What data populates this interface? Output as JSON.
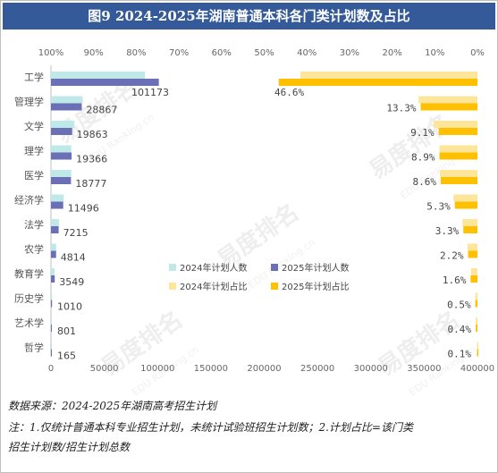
{
  "title": "图9  2024-2025年湖南普通本科各门类计划数及占比",
  "chart_data": [
    {
      "type": "bar",
      "orientation": "horizontal",
      "categories": [
        "工学",
        "管理学",
        "文学",
        "理学",
        "医学",
        "经济学",
        "法学",
        "农学",
        "教育学",
        "历史学",
        "艺术学",
        "哲学"
      ],
      "series": [
        {
          "name": "2024年计划人数",
          "color": "#bfe8e8",
          "values": [
            88000,
            29800,
            22000,
            19000,
            19000,
            12000,
            7500,
            4900,
            3300,
            1100,
            850,
            180
          ]
        },
        {
          "name": "2025年计划人数",
          "color": "#6b6fb6",
          "values": [
            101173,
            28867,
            19863,
            19366,
            18777,
            11496,
            7215,
            4814,
            3549,
            1010,
            801,
            165
          ]
        }
      ],
      "data_labels": [
        "101173",
        "28867",
        "19863",
        "19366",
        "18777",
        "11496",
        "7215",
        "4814",
        "3549",
        "1010",
        "801",
        "165"
      ],
      "xlim": [
        0,
        400000
      ],
      "xticks": [
        "0",
        "50000",
        "100000",
        "150000",
        "200000",
        "250000",
        "300000",
        "350000",
        "400000"
      ]
    },
    {
      "type": "bar",
      "orientation": "horizontal",
      "axis": "reversed",
      "categories": [
        "工学",
        "管理学",
        "文学",
        "理学",
        "医学",
        "经济学",
        "法学",
        "农学",
        "教育学",
        "历史学",
        "艺术学",
        "哲学"
      ],
      "series": [
        {
          "name": "2024年计划占比",
          "color": "#fde59a",
          "values": [
            41.5,
            13.8,
            10.3,
            8.9,
            8.8,
            5.6,
            3.5,
            2.3,
            1.5,
            0.5,
            0.4,
            0.1
          ]
        },
        {
          "name": "2025年计划占比",
          "color": "#ffc000",
          "values": [
            46.6,
            13.3,
            9.1,
            8.9,
            8.6,
            5.3,
            3.3,
            2.2,
            1.6,
            0.5,
            0.4,
            0.1
          ]
        }
      ],
      "data_labels": [
        "46.6%",
        "13.3%",
        "9.1%",
        "8.9%",
        "8.6%",
        "5.3%",
        "3.3%",
        "2.2%",
        "1.6%",
        "0.5%",
        "0.4%",
        "0.1%"
      ],
      "xlim": [
        100,
        0
      ],
      "xticks": [
        "100%",
        "90%",
        "80%",
        "70%",
        "60%",
        "50%",
        "40%",
        "30%",
        "20%",
        "10%",
        "0%"
      ]
    }
  ],
  "legend": [
    "2024年计划人数",
    "2025年计划人数",
    "2024年计划占比",
    "2025年计划占比"
  ],
  "notes": {
    "source": "数据来源：2024-2025年湖南高考招生计划",
    "note_line1": "注：1.仅统计普通本科专业招生计划，未统计试验班招生计划数；2.计划占比=该门类",
    "note_line2": "招生计划数/招生计划总数"
  },
  "watermark": [
    "易度排名",
    "EDU Ranking.cn"
  ]
}
